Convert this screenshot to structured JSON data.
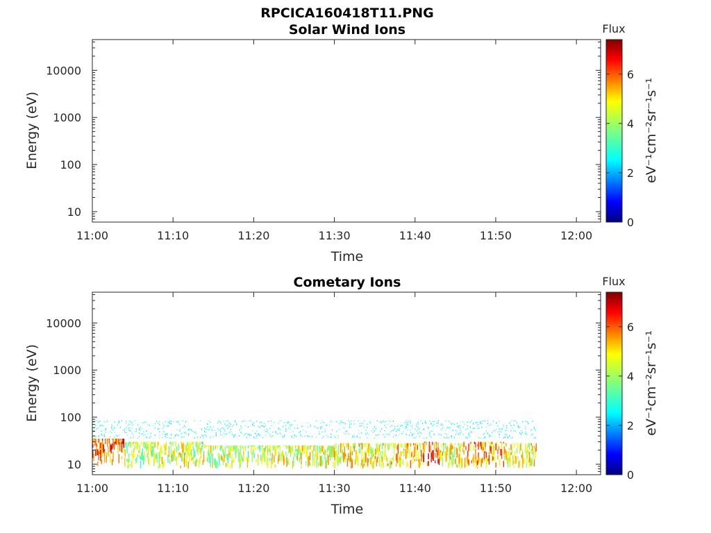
{
  "figure_title": "RPCICA160418T11.PNG",
  "colors": {
    "colormap": "jet",
    "colormap_stops": [
      "#00007f",
      "#0000ff",
      "#007fff",
      "#00ffff",
      "#7fff7f",
      "#ffff00",
      "#ff7f00",
      "#ff0000",
      "#7f0000"
    ]
  },
  "chart_data": [
    {
      "type": "heatmap",
      "title": "Solar Wind Ions",
      "xlabel": "Time",
      "ylabel": "Energy (eV)",
      "x_ticks": [
        "11:00",
        "11:10",
        "11:20",
        "11:30",
        "11:40",
        "11:50",
        "12:00"
      ],
      "y_ticks": [
        "10",
        "100",
        "1000",
        "10000"
      ],
      "xlim": [
        "11:00",
        "12:03"
      ],
      "ylim": [
        6,
        45000
      ],
      "y_scale": "log",
      "colorbar": {
        "title": "Flux",
        "label": "eV⁻¹cm⁻²sr⁻¹s⁻¹",
        "ticks": [
          "0",
          "2",
          "4",
          "6"
        ],
        "range": [
          0,
          7.4
        ],
        "scale_note": "log10 flux"
      },
      "regions": []
    },
    {
      "type": "heatmap",
      "title": "Cometary Ions",
      "xlabel": "Time",
      "ylabel": "Energy (eV)",
      "x_ticks": [
        "11:00",
        "11:10",
        "11:20",
        "11:30",
        "11:40",
        "11:50",
        "12:00"
      ],
      "y_ticks": [
        "10",
        "100",
        "1000",
        "10000"
      ],
      "xlim": [
        "11:00",
        "12:03"
      ],
      "ylim": [
        6,
        45000
      ],
      "y_scale": "log",
      "colorbar": {
        "title": "Flux",
        "label": "eV⁻¹cm⁻²sr⁻¹s⁻¹",
        "ticks": [
          "0",
          "2",
          "4",
          "6"
        ],
        "range": [
          0,
          7.4
        ],
        "scale_note": "log10 flux"
      },
      "regions": [
        {
          "start": "11:00",
          "end": "11:04",
          "e_low": 9,
          "e_high": 35,
          "level": 5.8
        },
        {
          "start": "11:04",
          "end": "11:08",
          "e_low": 8,
          "e_high": 30,
          "level": 4.0
        },
        {
          "start": "11:08",
          "end": "11:14",
          "e_low": 8,
          "e_high": 30,
          "level": 4.4
        },
        {
          "start": "11:14",
          "end": "11:22",
          "e_low": 8,
          "e_high": 25,
          "level": 4.2
        },
        {
          "start": "11:22",
          "end": "11:30",
          "e_low": 8,
          "e_high": 25,
          "level": 4.4
        },
        {
          "start": "11:30",
          "end": "11:37",
          "e_low": 8,
          "e_high": 28,
          "level": 4.6
        },
        {
          "start": "11:37",
          "end": "11:41",
          "e_low": 8,
          "e_high": 28,
          "level": 5.0
        },
        {
          "start": "11:41",
          "end": "11:43",
          "e_low": 9,
          "e_high": 30,
          "level": 6.0
        },
        {
          "start": "11:43",
          "end": "11:46",
          "e_low": 8,
          "e_high": 28,
          "level": 4.6
        },
        {
          "start": "11:46",
          "end": "11:51",
          "e_low": 8,
          "e_high": 30,
          "level": 5.4
        },
        {
          "start": "11:51",
          "end": "11:55",
          "e_low": 8,
          "e_high": 28,
          "level": 4.6
        },
        {
          "start": "11:00",
          "end": "11:55",
          "e_low": 35,
          "e_high": 85,
          "level": 2.8
        }
      ]
    }
  ]
}
